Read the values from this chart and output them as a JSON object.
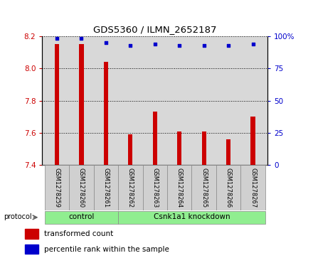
{
  "title": "GDS5360 / ILMN_2652187",
  "samples": [
    "GSM1278259",
    "GSM1278260",
    "GSM1278261",
    "GSM1278262",
    "GSM1278263",
    "GSM1278264",
    "GSM1278265",
    "GSM1278266",
    "GSM1278267"
  ],
  "transformed_count": [
    8.15,
    8.15,
    8.04,
    7.59,
    7.73,
    7.61,
    7.61,
    7.56,
    7.7
  ],
  "percentile_rank": [
    98,
    98,
    95,
    93,
    94,
    93,
    93,
    93,
    94
  ],
  "ylim_left": [
    7.4,
    8.2
  ],
  "ylim_right": [
    0,
    100
  ],
  "yticks_left": [
    7.4,
    7.6,
    7.8,
    8.0,
    8.2
  ],
  "yticks_right": [
    0,
    25,
    50,
    75,
    100
  ],
  "bar_color": "#cc0000",
  "dot_color": "#0000cc",
  "bar_width": 0.18,
  "group_bar_color": "#90ee90",
  "tick_label_color_left": "#cc0000",
  "tick_label_color_right": "#0000cc",
  "legend_items": [
    {
      "label": "transformed count",
      "color": "#cc0000"
    },
    {
      "label": "percentile rank within the sample",
      "color": "#0000cc"
    }
  ],
  "protocol_label": "protocol",
  "plot_bg_color": "#d8d8d8",
  "label_bg_color": "#d0d0d0"
}
